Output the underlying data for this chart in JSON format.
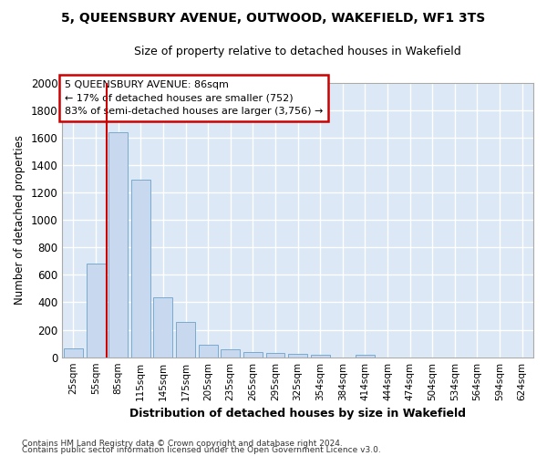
{
  "title1": "5, QUEENSBURY AVENUE, OUTWOOD, WAKEFIELD, WF1 3TS",
  "title2": "Size of property relative to detached houses in Wakefield",
  "xlabel": "Distribution of detached houses by size in Wakefield",
  "ylabel": "Number of detached properties",
  "categories": [
    "25sqm",
    "55sqm",
    "85sqm",
    "115sqm",
    "145sqm",
    "175sqm",
    "205sqm",
    "235sqm",
    "265sqm",
    "295sqm",
    "325sqm",
    "354sqm",
    "384sqm",
    "414sqm",
    "444sqm",
    "474sqm",
    "504sqm",
    "534sqm",
    "564sqm",
    "594sqm",
    "624sqm"
  ],
  "values": [
    65,
    685,
    1640,
    1290,
    435,
    255,
    90,
    55,
    40,
    30,
    25,
    15,
    0,
    20,
    0,
    0,
    0,
    0,
    0,
    0,
    0
  ],
  "bar_color": "#c8d8ee",
  "bar_edge_color": "#7aaacf",
  "vline_color": "#cc0000",
  "annotation_line1": "5 QUEENSBURY AVENUE: 86sqm",
  "annotation_line2": "← 17% of detached houses are smaller (752)",
  "annotation_line3": "83% of semi-detached houses are larger (3,756) →",
  "annotation_box_facecolor": "#ffffff",
  "annotation_box_edgecolor": "#cc0000",
  "ylim": [
    0,
    2000
  ],
  "yticks": [
    0,
    200,
    400,
    600,
    800,
    1000,
    1200,
    1400,
    1600,
    1800,
    2000
  ],
  "footnote1": "Contains HM Land Registry data © Crown copyright and database right 2024.",
  "footnote2": "Contains public sector information licensed under the Open Government Licence v3.0.",
  "plot_bg_color": "#dce8f5",
  "fig_bg_color": "#ffffff",
  "grid_color": "#ffffff",
  "vline_x_index": 1.5
}
